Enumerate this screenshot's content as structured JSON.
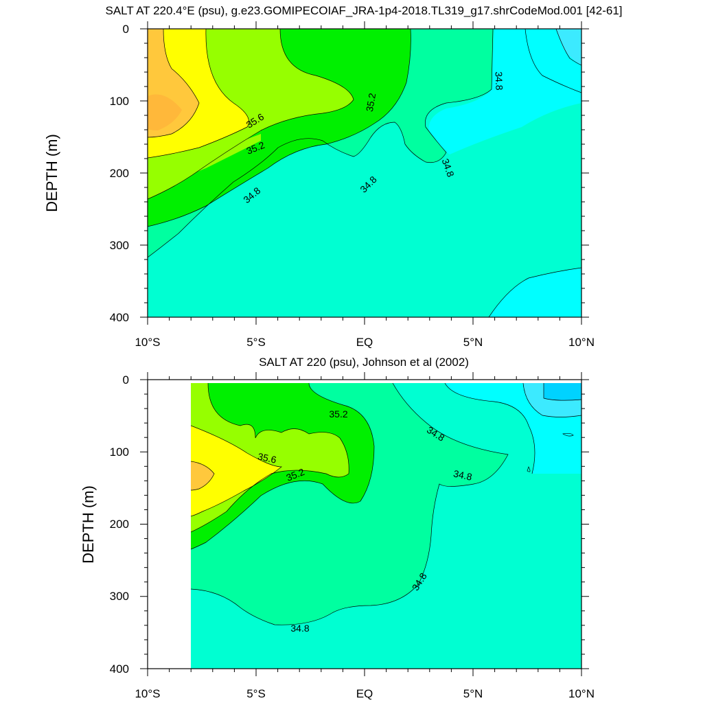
{
  "chart_data": [
    {
      "type": "contour",
      "title": "SALT AT 220.4°E (psu), g.e23.GOMIPECOIAF_JRA-1p4-2018.TL319_g17.shrCodeMod.001 [42-61]",
      "ylabel": "DEPTH (m)",
      "xlim": [
        -10,
        10
      ],
      "ylim": [
        0,
        400
      ],
      "y_inverted": true,
      "x_tick_labels": [
        "10°S",
        "5°S",
        "EQ",
        "5°N",
        "10°N"
      ],
      "y_tick_labels": [
        "0",
        "100",
        "200",
        "300",
        "400"
      ],
      "contour_labels": [
        {
          "text": "35.6",
          "lat": -5.5,
          "depth": 128
        },
        {
          "text": "35.2",
          "lat": -5.5,
          "depth": 168
        },
        {
          "text": "34.8",
          "lat": -5.5,
          "depth": 233
        },
        {
          "text": "35.2",
          "lat": 0.4,
          "depth": 100
        },
        {
          "text": "34.8",
          "lat": 0.2,
          "depth": 215
        },
        {
          "text": "34.8",
          "lat": 3.7,
          "depth": 198
        },
        {
          "text": "34.8",
          "lat": 6.0,
          "depth": 72
        }
      ]
    },
    {
      "type": "contour",
      "title": "SALT AT 220 (psu), Johnson et al (2002)",
      "ylabel": "DEPTH (m)",
      "xlim": [
        -10,
        10
      ],
      "ylim": [
        0,
        400
      ],
      "y_inverted": true,
      "x_tick_labels": [
        "10°S",
        "5°S",
        "EQ",
        "5°N",
        "10°N"
      ],
      "y_tick_labels": [
        "0",
        "100",
        "200",
        "300",
        "400"
      ],
      "contour_labels": [
        {
          "text": "35.2",
          "lat": -1.2,
          "depth": 47
        },
        {
          "text": "35.6",
          "lat": -4.5,
          "depth": 106
        },
        {
          "text": "35.2",
          "lat": -3.3,
          "depth": 128
        },
        {
          "text": "34.8",
          "lat": 3.2,
          "depth": 72
        },
        {
          "text": "34.8",
          "lat": 4.5,
          "depth": 134
        },
        {
          "text": "34.8",
          "lat": 2.6,
          "depth": 280
        },
        {
          "text": "34.8",
          "lat": -2.9,
          "depth": 340
        }
      ]
    }
  ],
  "colors": {
    "orange": "#ffc83c",
    "yellow": "#ffff00",
    "light_green": "#96ff00",
    "green": "#00f000",
    "aqua_green": "#00ffa0",
    "turquoise": "#00ffd2",
    "cyan": "#00ffff",
    "light_blue": "#3ceaff",
    "blue": "#00d2ff"
  }
}
